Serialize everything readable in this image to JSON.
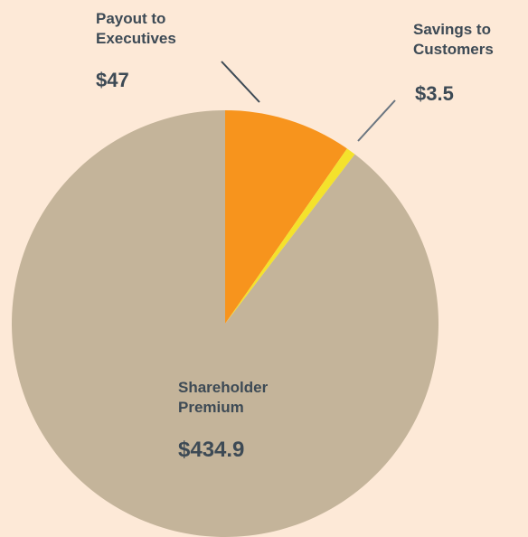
{
  "chart_data": {
    "type": "pie",
    "categories": [
      "Payout to Executives",
      "Savings to Customers",
      "Shareholder Premium"
    ],
    "values": [
      47,
      3.5,
      434.9
    ],
    "value_labels": [
      "$47",
      "$3.5",
      "$434.9"
    ],
    "colors": [
      "#f7941d",
      "#f4e22c",
      "#c4b49a"
    ]
  }
}
